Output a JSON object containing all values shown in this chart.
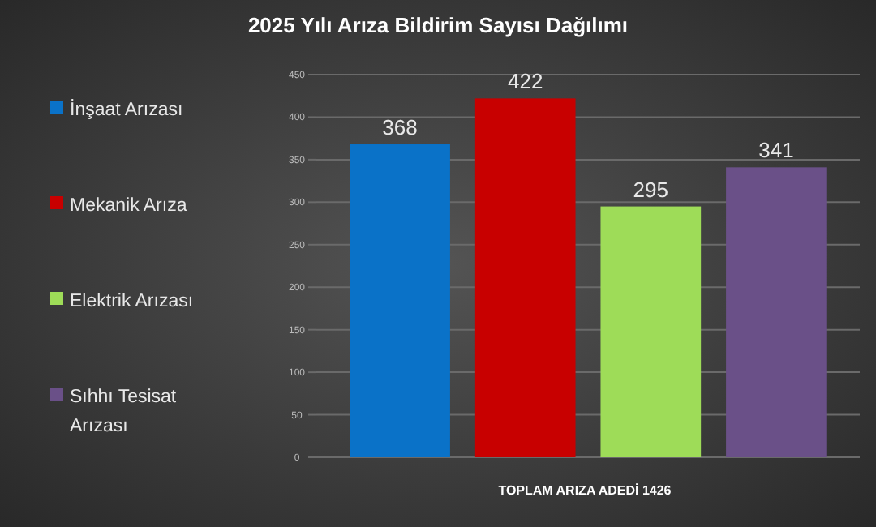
{
  "chart_data": {
    "type": "bar",
    "title": "2025 Yılı Arıza Bildirim Sayısı Dağılımı",
    "xlabel": "TOPLAM ARIZA ADEDİ 1426",
    "categories": [
      null
    ],
    "series": [
      {
        "name": "İnşaat Arızası",
        "color": "#0a72c8",
        "values": [
          368
        ]
      },
      {
        "name": "Mekanik Arıza",
        "color": "#c80000",
        "values": [
          422
        ]
      },
      {
        "name": "Elektrik Arızası",
        "color": "#9edc58",
        "values": [
          295
        ]
      },
      {
        "name": "Sıhhı Tesisat Arızası",
        "color": "#6a5088",
        "values": [
          341
        ]
      }
    ],
    "ylim": [
      0,
      450
    ],
    "yticks": [
      0,
      50,
      100,
      150,
      200,
      250,
      300,
      350,
      400,
      450
    ],
    "grid": "y",
    "legend": "left",
    "data_labels": true
  }
}
